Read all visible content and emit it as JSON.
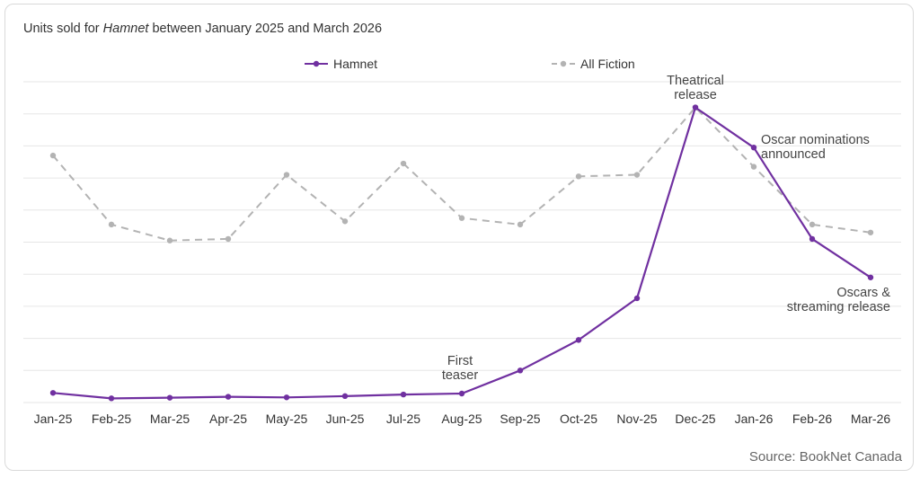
{
  "title": {
    "prefix": "Units sold for ",
    "book": "Hamnet",
    "suffix": " between January 2025 and March 2026"
  },
  "source": "Source: BookNet Canada",
  "colors": {
    "hamnet": "#7030a0",
    "fiction": "#b3b3b3",
    "grid": "#e6e6e6",
    "text": "#333333"
  },
  "chart_data": {
    "type": "line",
    "title": "Units sold for Hamnet between January 2025 and March 2026",
    "xlabel": "",
    "ylabel": "",
    "y_tick_labels_shown": false,
    "ylim": [
      0,
      100
    ],
    "grid": true,
    "legend_position": "top-center",
    "categories": [
      "Jan-25",
      "Feb-25",
      "Mar-25",
      "Apr-25",
      "May-25",
      "Jun-25",
      "Jul-25",
      "Aug-25",
      "Sep-25",
      "Oct-25",
      "Nov-25",
      "Dec-25",
      "Jan-26",
      "Feb-26",
      "Mar-26"
    ],
    "series": [
      {
        "name": "Hamnet",
        "style": "solid",
        "color": "#7030a0",
        "values": [
          3,
          1.3,
          1.5,
          1.8,
          1.6,
          2,
          2.5,
          2.8,
          10,
          19.5,
          32.5,
          92,
          79.5,
          51,
          39
        ]
      },
      {
        "name": "All Fiction",
        "style": "dashed",
        "color": "#b3b3b3",
        "values": [
          77,
          55.5,
          50.5,
          51,
          71,
          56.5,
          74.5,
          57.5,
          55.5,
          70.5,
          71,
          92,
          73.5,
          55.5,
          53
        ]
      }
    ],
    "annotations": [
      {
        "lines": [
          "First",
          "teaser"
        ],
        "category": "Aug-25"
      },
      {
        "lines": [
          "Theatrical",
          "release"
        ],
        "category": "Dec-25"
      },
      {
        "lines": [
          "Oscar nominations",
          "announced"
        ],
        "category": "Jan-26"
      },
      {
        "lines": [
          "Oscars &",
          "streaming release"
        ],
        "category": "Mar-26"
      }
    ]
  }
}
